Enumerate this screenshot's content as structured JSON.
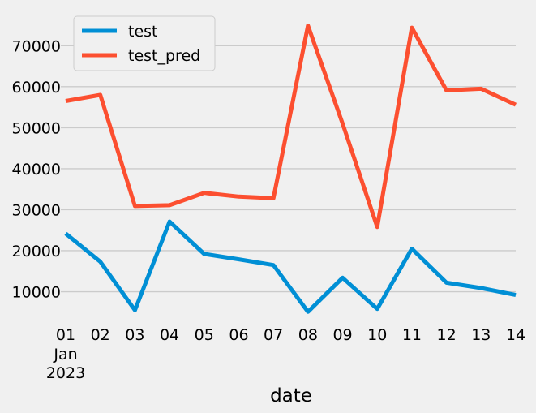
{
  "chart_data": {
    "type": "line",
    "title": "",
    "xlabel": "date",
    "ylabel": "",
    "x": [
      "01",
      "02",
      "03",
      "04",
      "05",
      "06",
      "07",
      "08",
      "09",
      "10",
      "11",
      "12",
      "13",
      "14"
    ],
    "x_sublabels": {
      "month": "Jan",
      "year": "2023"
    },
    "ylim": [
      1000,
      76000
    ],
    "yticks": [
      10000,
      20000,
      30000,
      40000,
      50000,
      60000,
      70000
    ],
    "ytick_labels": [
      "10000",
      "20000",
      "30000",
      "40000",
      "50000",
      "60000",
      "70000"
    ],
    "grid": true,
    "legend_position": "top-left",
    "series": [
      {
        "name": "test",
        "color": "#008fd5",
        "values": [
          24200,
          17300,
          5500,
          27100,
          19200,
          17900,
          16500,
          5100,
          13400,
          5800,
          20500,
          12200,
          10900,
          9200
        ]
      },
      {
        "name": "test_pred",
        "color": "#fc4f30",
        "values": [
          56500,
          58000,
          30900,
          31100,
          34100,
          33200,
          32800,
          74900,
          51000,
          25800,
          74400,
          59100,
          59500,
          55600
        ]
      }
    ]
  }
}
